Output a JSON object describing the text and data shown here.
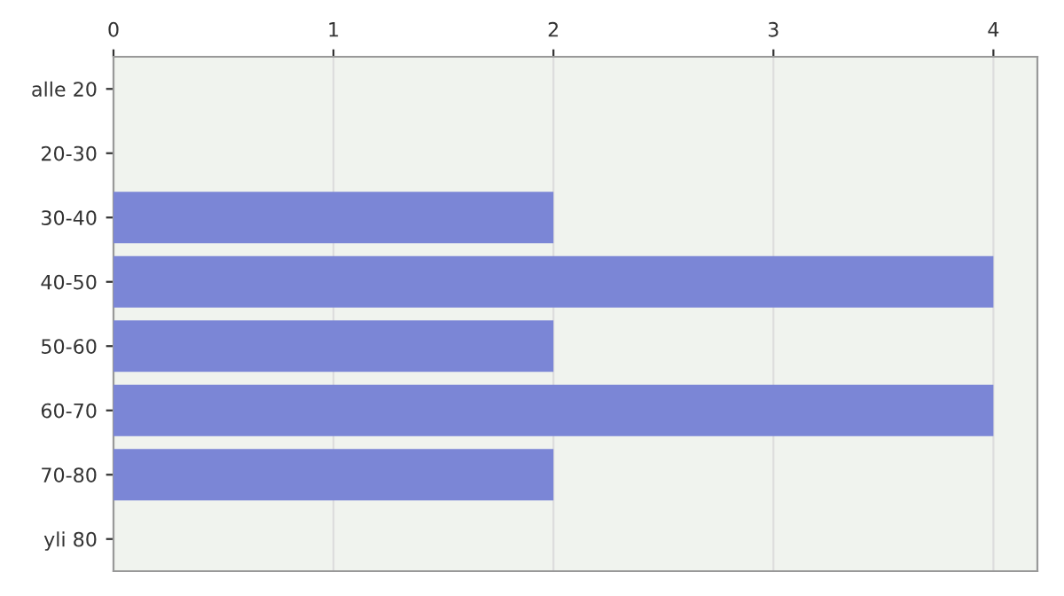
{
  "chart_data": {
    "type": "bar",
    "orientation": "horizontal",
    "categories": [
      "alle 20",
      "20-30",
      "30-40",
      "40-50",
      "50-60",
      "60-70",
      "70-80",
      "yli 80"
    ],
    "values": [
      0,
      0,
      2,
      4,
      2,
      4,
      2,
      0
    ],
    "color": "#7b86d6",
    "xlim": [
      0,
      4.2
    ],
    "xticks": [
      0,
      1,
      2,
      3,
      4
    ],
    "grid": "x",
    "legend": false
  }
}
